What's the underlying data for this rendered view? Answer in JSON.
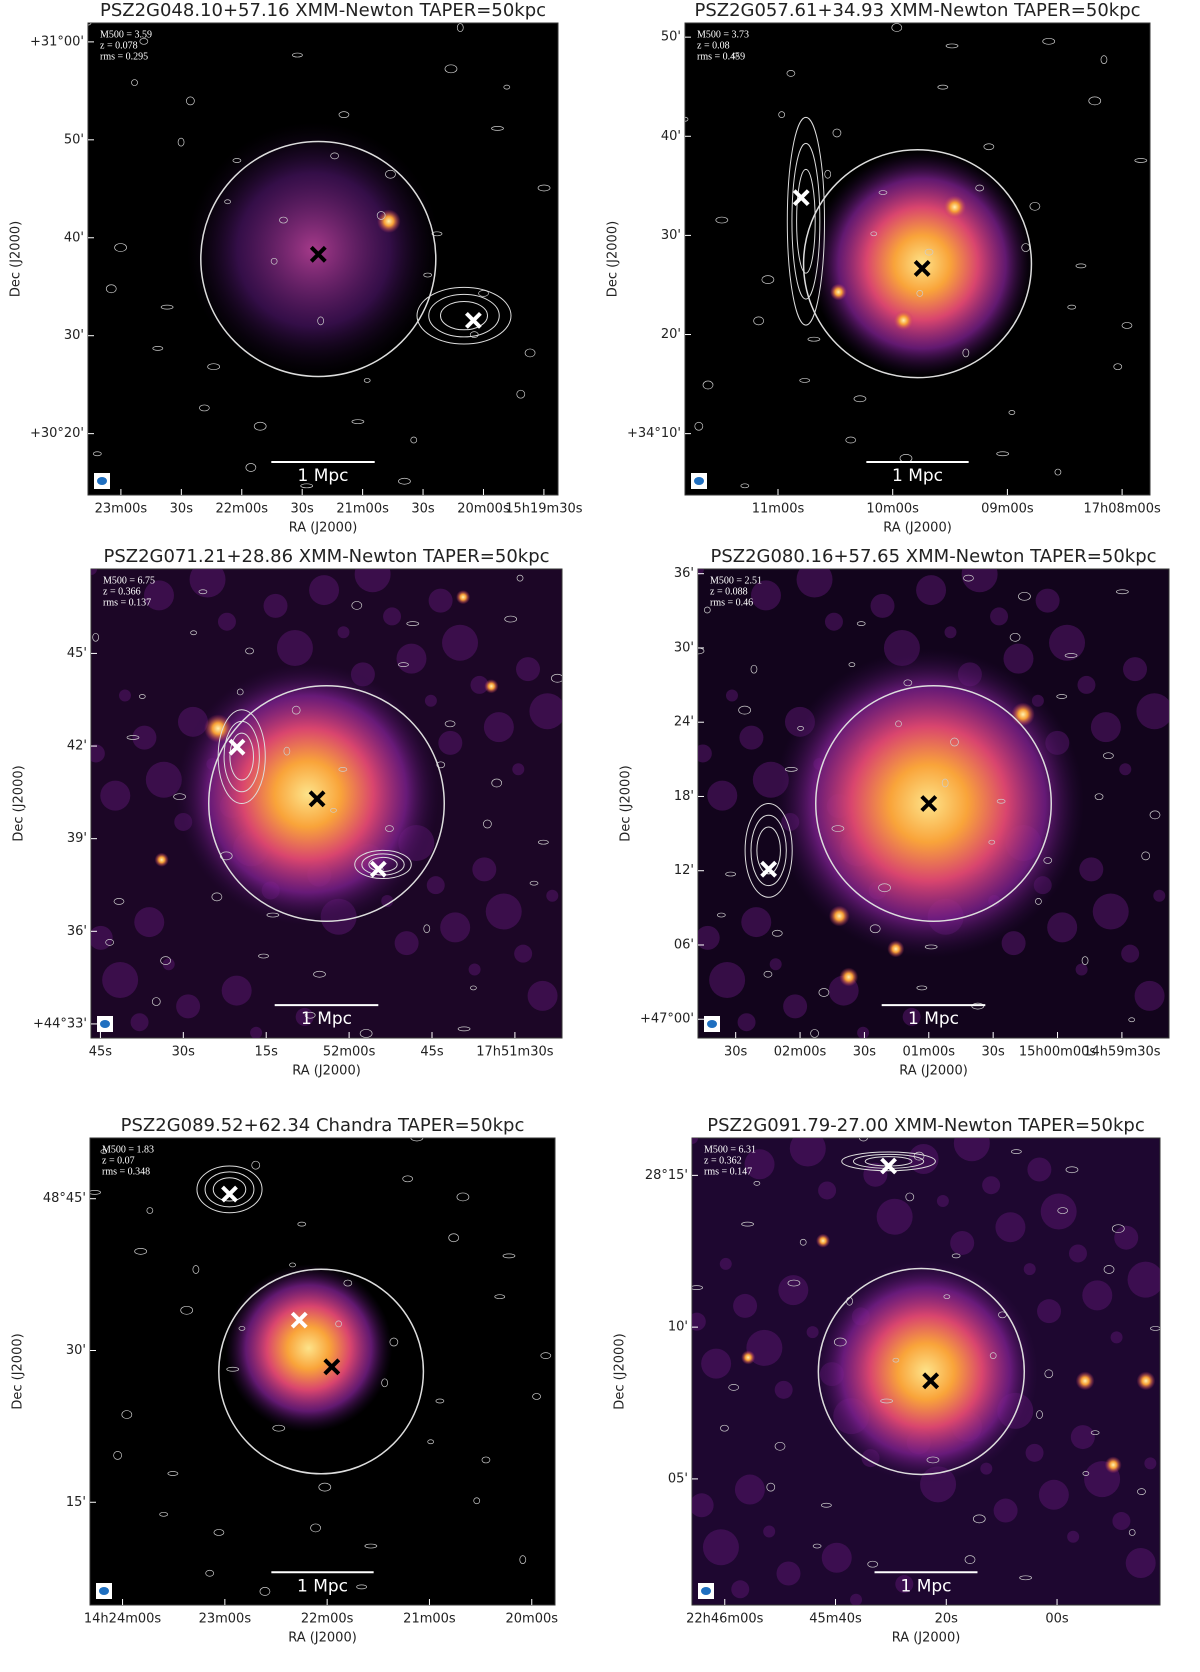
{
  "panels": [
    {
      "title": "PSZ2G048.10+57.16 XMM-Newton TAPER=50kpc",
      "info": [
        "M500 = 3.59",
        "z = 0.078",
        "rms = 0.295"
      ],
      "y_ticks": [
        "+31°00'",
        "50'",
        "40'",
        "30'",
        "+30°20'"
      ],
      "x_ticks": [
        "23m00s",
        "30s",
        "22m00s",
        "30s",
        "21m00s",
        "30s",
        "20m00s",
        "15h19m30s"
      ],
      "x_label": "RA (J2000)",
      "y_label": "Dec (J2000)",
      "scale_bar": "1 Mpc"
    },
    {
      "title": "PSZ2G057.61+34.93 XMM-Newton TAPER=50kpc",
      "info": [
        "M500 = 3.73",
        "z = 0.08",
        "rms = 0.459"
      ],
      "y_ticks": [
        "50'",
        "40'",
        "30'",
        "20'",
        "+34°10'"
      ],
      "x_ticks": [
        "11m00s",
        "10m00s",
        "09m00s",
        "17h08m00s"
      ],
      "x_label": "RA (J2000)",
      "y_label": "Dec (J2000)",
      "scale_bar": "1 Mpc"
    },
    {
      "title": "PSZ2G071.21+28.86 XMM-Newton TAPER=50kpc",
      "info": [
        "M500 = 6.75",
        "z = 0.366",
        "rms = 0.137"
      ],
      "y_ticks": [
        "45'",
        "42'",
        "39'",
        "36'",
        "+44°33'"
      ],
      "x_ticks": [
        "45s",
        "30s",
        "15s",
        "52m00s",
        "45s",
        "17h51m30s"
      ],
      "x_label": "RA (J2000)",
      "y_label": "Dec (J2000)",
      "scale_bar": "1 Mpc"
    },
    {
      "title": "PSZ2G080.16+57.65 XMM-Newton TAPER=50kpc",
      "info": [
        "M500 = 2.51",
        "z = 0.088",
        "rms = 0.46"
      ],
      "y_ticks": [
        "36'",
        "30'",
        "24'",
        "18'",
        "12'",
        "06'",
        "+47°00'"
      ],
      "x_ticks": [
        "30s",
        "02m00s",
        "30s",
        "01m00s",
        "30s",
        "15h00m00s",
        "14h59m30s"
      ],
      "x_label": "RA (J2000)",
      "y_label": "Dec (J2000)",
      "scale_bar": "1 Mpc"
    },
    {
      "title": "PSZ2G089.52+62.34 Chandra TAPER=50kpc",
      "info": [
        "M500 = 1.83",
        "z = 0.07",
        "rms = 0.348"
      ],
      "y_ticks": [
        "48°45'",
        "30'",
        "15'"
      ],
      "x_ticks": [
        "14h24m00s",
        "23m00s",
        "22m00s",
        "21m00s",
        "20m00s"
      ],
      "x_label": "RA (J2000)",
      "y_label": "Dec (J2000)",
      "scale_bar": "1 Mpc"
    },
    {
      "title": "PSZ2G091.79-27.00 XMM-Newton TAPER=50kpc",
      "info": [
        "M500 = 6.31",
        "z = 0.362",
        "rms = 0.147"
      ],
      "y_ticks": [
        "28°15'",
        "10'",
        "05'"
      ],
      "x_ticks": [
        "22h46m00s",
        "45m40s",
        "20s",
        "00s"
      ],
      "x_label": "RA (J2000)",
      "y_label": "Dec (J2000)",
      "scale_bar": "1 Mpc"
    }
  ]
}
